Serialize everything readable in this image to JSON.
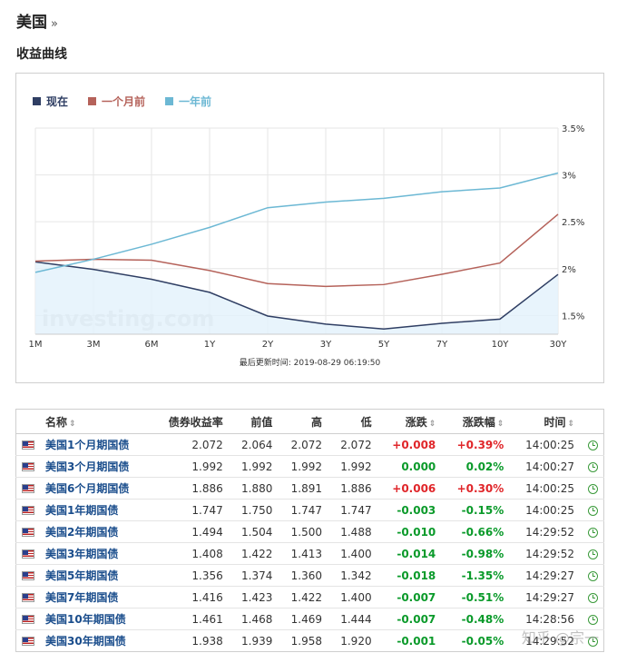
{
  "breadcrumb": {
    "country": "美国",
    "sep": "»"
  },
  "section_title": "收益曲线",
  "chart_data": {
    "type": "line",
    "categories": [
      "1M",
      "3M",
      "6M",
      "1Y",
      "2Y",
      "3Y",
      "5Y",
      "7Y",
      "10Y",
      "30Y"
    ],
    "ylim": [
      1.3,
      3.5
    ],
    "yticks": [
      1.5,
      2,
      2.5,
      3,
      3.5
    ],
    "ytick_labels": [
      "1.5%",
      "2%",
      "2.5%",
      "3%",
      "3.5%"
    ],
    "axis_position": "right",
    "legend_position": "top-left",
    "series": [
      {
        "name": "现在",
        "color": "#2f3e63",
        "values": [
          2.072,
          1.992,
          1.886,
          1.747,
          1.494,
          1.408,
          1.356,
          1.416,
          1.461,
          1.938
        ],
        "fill": true
      },
      {
        "name": "一个月前",
        "color": "#b5625a",
        "values": [
          2.08,
          2.1,
          2.09,
          1.98,
          1.84,
          1.81,
          1.83,
          1.94,
          2.06,
          2.58
        ]
      },
      {
        "name": "一年前",
        "color": "#6cb8d4",
        "values": [
          1.96,
          2.1,
          2.26,
          2.44,
          2.65,
          2.71,
          2.75,
          2.82,
          2.86,
          3.02
        ]
      }
    ],
    "watermark": "investing.com",
    "updated": "最后更新时间: 2019-08-29 06:19:50"
  },
  "table": {
    "headers": {
      "name": "名称",
      "yield": "债券收益率",
      "prev": "前值",
      "high": "高",
      "low": "低",
      "chg": "涨跌",
      "chg_pct": "涨跌幅",
      "time": "时间"
    },
    "rows": [
      {
        "name": "美国1个月期国债",
        "yield": "2.072",
        "prev": "2.064",
        "high": "2.072",
        "low": "2.072",
        "chg": "+0.008",
        "chg_pct": "+0.39%",
        "time": "14:00:25",
        "dir": "pos"
      },
      {
        "name": "美国3个月期国债",
        "yield": "1.992",
        "prev": "1.992",
        "high": "1.992",
        "low": "1.992",
        "chg": "0.000",
        "chg_pct": "0.02%",
        "time": "14:00:27",
        "dir": "zero"
      },
      {
        "name": "美国6个月期国债",
        "yield": "1.886",
        "prev": "1.880",
        "high": "1.891",
        "low": "1.886",
        "chg": "+0.006",
        "chg_pct": "+0.30%",
        "time": "14:00:25",
        "dir": "pos"
      },
      {
        "name": "美国1年期国债",
        "yield": "1.747",
        "prev": "1.750",
        "high": "1.747",
        "low": "1.747",
        "chg": "-0.003",
        "chg_pct": "-0.15%",
        "time": "14:00:25",
        "dir": "neg"
      },
      {
        "name": "美国2年期国债",
        "yield": "1.494",
        "prev": "1.504",
        "high": "1.500",
        "low": "1.488",
        "chg": "-0.010",
        "chg_pct": "-0.66%",
        "time": "14:29:52",
        "dir": "neg"
      },
      {
        "name": "美国3年期国债",
        "yield": "1.408",
        "prev": "1.422",
        "high": "1.413",
        "low": "1.400",
        "chg": "-0.014",
        "chg_pct": "-0.98%",
        "time": "14:29:52",
        "dir": "neg"
      },
      {
        "name": "美国5年期国债",
        "yield": "1.356",
        "prev": "1.374",
        "high": "1.360",
        "low": "1.342",
        "chg": "-0.018",
        "chg_pct": "-1.35%",
        "time": "14:29:27",
        "dir": "neg"
      },
      {
        "name": "美国7年期国债",
        "yield": "1.416",
        "prev": "1.423",
        "high": "1.422",
        "low": "1.400",
        "chg": "-0.007",
        "chg_pct": "-0.51%",
        "time": "14:29:27",
        "dir": "neg"
      },
      {
        "name": "美国10年期国债",
        "yield": "1.461",
        "prev": "1.468",
        "high": "1.469",
        "low": "1.444",
        "chg": "-0.007",
        "chg_pct": "-0.48%",
        "time": "14:28:56",
        "dir": "neg"
      },
      {
        "name": "美国30年期国债",
        "yield": "1.938",
        "prev": "1.939",
        "high": "1.958",
        "low": "1.920",
        "chg": "-0.001",
        "chg_pct": "-0.05%",
        "time": "14:29:52",
        "dir": "neg"
      }
    ]
  },
  "watermark_text": "知乎 @宗一"
}
